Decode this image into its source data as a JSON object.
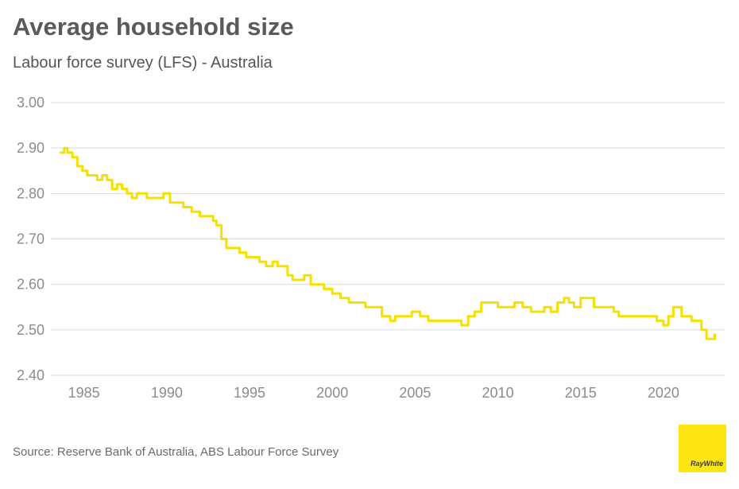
{
  "header": {
    "title": "Average household size",
    "subtitle": "Labour force survey (LFS) - Australia"
  },
  "footer": {
    "source": "Source: Reserve Bank of Australia, ABS Labour Force Survey",
    "logo_text": "RayWhite",
    "logo_color": "#ffe512"
  },
  "chart_data": {
    "type": "line",
    "title": "Average household size",
    "subtitle": "Labour force survey (LFS) - Australia",
    "xlabel": "",
    "ylabel": "",
    "xlim": [
      1983.0,
      2023.7
    ],
    "ylim": [
      2.4,
      3.0
    ],
    "x_ticks": [
      1985,
      1990,
      1995,
      2000,
      2005,
      2010,
      2015,
      2020
    ],
    "y_ticks": [
      2.4,
      2.5,
      2.6,
      2.7,
      2.8,
      2.9,
      3.0
    ],
    "y_tick_labels": [
      "2.40",
      "2.50",
      "2.60",
      "2.70",
      "2.80",
      "2.90",
      "3.00"
    ],
    "grid": "horizontal",
    "line_color": "#f5e100",
    "series": [
      {
        "x": [
          1983.6,
          1983.8,
          1984.0,
          1984.3,
          1984.6,
          1984.9,
          1985.2,
          1985.5,
          1985.8,
          1986.1,
          1986.4,
          1986.7,
          1987.0,
          1987.3,
          1987.6,
          1987.9,
          1988.2,
          1988.5,
          1988.8,
          1989.2,
          1989.5,
          1989.8,
          1990.2,
          1990.6,
          1991.0,
          1991.5,
          1992.0,
          1992.5,
          1992.8,
          1993.0,
          1993.3,
          1993.6,
          1994.0,
          1994.4,
          1994.8,
          1995.2,
          1995.6,
          1996.0,
          1996.4,
          1996.7,
          1997.0,
          1997.3,
          1997.6,
          1998.0,
          1998.3,
          1998.7,
          1999.0,
          1999.5,
          2000.0,
          2000.5,
          2001.0,
          2001.5,
          2002.0,
          2002.5,
          2003.0,
          2003.5,
          2003.8,
          2004.2,
          2004.8,
          2005.3,
          2005.8,
          2006.3,
          2006.9,
          2007.4,
          2007.8,
          2008.2,
          2008.6,
          2009.0,
          2009.5,
          2010.0,
          2010.6,
          2011.0,
          2011.5,
          2012.0,
          2012.4,
          2012.8,
          2013.2,
          2013.6,
          2014.0,
          2014.3,
          2014.6,
          2015.0,
          2015.4,
          2015.8,
          2016.2,
          2016.6,
          2017.0,
          2017.3,
          2017.6,
          2018.0,
          2018.4,
          2018.8,
          2019.2,
          2019.6,
          2020.0,
          2020.3,
          2020.6,
          2020.9,
          2021.1,
          2021.4,
          2021.7,
          2022.0,
          2022.3,
          2022.6,
          2022.9,
          2023.1
        ],
        "y": [
          2.89,
          2.9,
          2.89,
          2.88,
          2.86,
          2.85,
          2.84,
          2.84,
          2.83,
          2.84,
          2.83,
          2.81,
          2.82,
          2.81,
          2.8,
          2.79,
          2.8,
          2.8,
          2.79,
          2.79,
          2.79,
          2.8,
          2.78,
          2.78,
          2.77,
          2.76,
          2.75,
          2.75,
          2.74,
          2.73,
          2.7,
          2.68,
          2.68,
          2.67,
          2.66,
          2.66,
          2.65,
          2.64,
          2.65,
          2.64,
          2.64,
          2.62,
          2.61,
          2.61,
          2.62,
          2.6,
          2.6,
          2.59,
          2.58,
          2.57,
          2.56,
          2.56,
          2.55,
          2.55,
          2.53,
          2.52,
          2.53,
          2.53,
          2.54,
          2.53,
          2.52,
          2.52,
          2.52,
          2.52,
          2.51,
          2.53,
          2.54,
          2.56,
          2.56,
          2.55,
          2.55,
          2.56,
          2.55,
          2.54,
          2.54,
          2.55,
          2.54,
          2.56,
          2.57,
          2.56,
          2.55,
          2.57,
          2.57,
          2.55,
          2.55,
          2.55,
          2.54,
          2.53,
          2.53,
          2.53,
          2.53,
          2.53,
          2.53,
          2.52,
          2.51,
          2.53,
          2.55,
          2.55,
          2.53,
          2.53,
          2.52,
          2.52,
          2.5,
          2.48,
          2.48,
          2.49
        ]
      }
    ]
  }
}
